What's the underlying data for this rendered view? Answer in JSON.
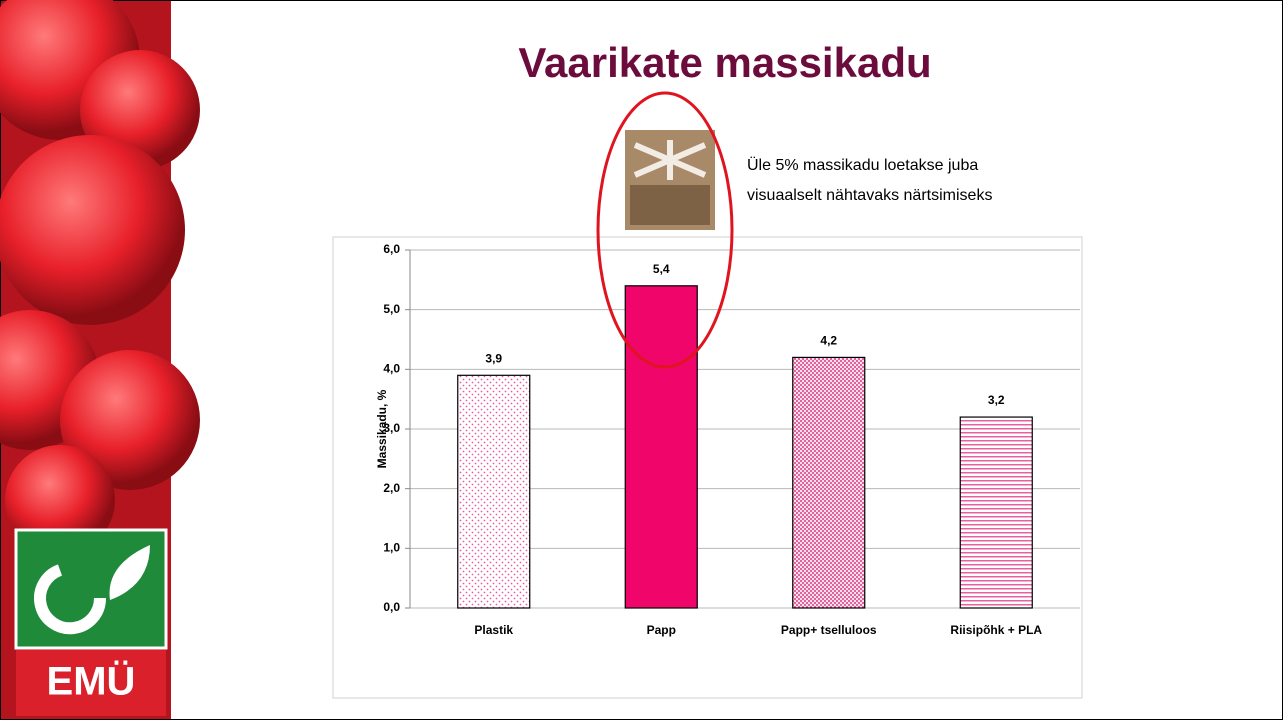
{
  "chart_data": {
    "type": "bar",
    "title": "Vaarikate massikadu",
    "annotation": [
      "Üle 5% massikadu loetakse juba",
      "visuaalselt nähtavaks närtsimiseks"
    ],
    "ylabel": "Massikadu, %",
    "categories": [
      "Plastik",
      "Papp",
      "Papp+ tselluloos",
      "Riisipõhk + PLA"
    ],
    "values": [
      3.9,
      5.4,
      4.2,
      3.2
    ],
    "value_labels": [
      "3,9",
      "5,4",
      "4,2",
      "3,2"
    ],
    "colors": [
      "#e8609f",
      "#f0056b",
      "#d93a82",
      "#e8609f"
    ],
    "patterns": [
      "dots-sparse",
      "solid",
      "dots-dense",
      "horizontal-stripes"
    ],
    "ylim": [
      0,
      6
    ],
    "yticks": [
      {
        "value": 0,
        "label": "0,0"
      },
      {
        "value": 1,
        "label": "1,0"
      },
      {
        "value": 2,
        "label": "2,0"
      },
      {
        "value": 3,
        "label": "3,0"
      },
      {
        "value": 4,
        "label": "4,0"
      },
      {
        "value": 5,
        "label": "5,0"
      },
      {
        "value": 6,
        "label": "6,0"
      }
    ],
    "grid": true
  },
  "logo_text": "EMÜ"
}
